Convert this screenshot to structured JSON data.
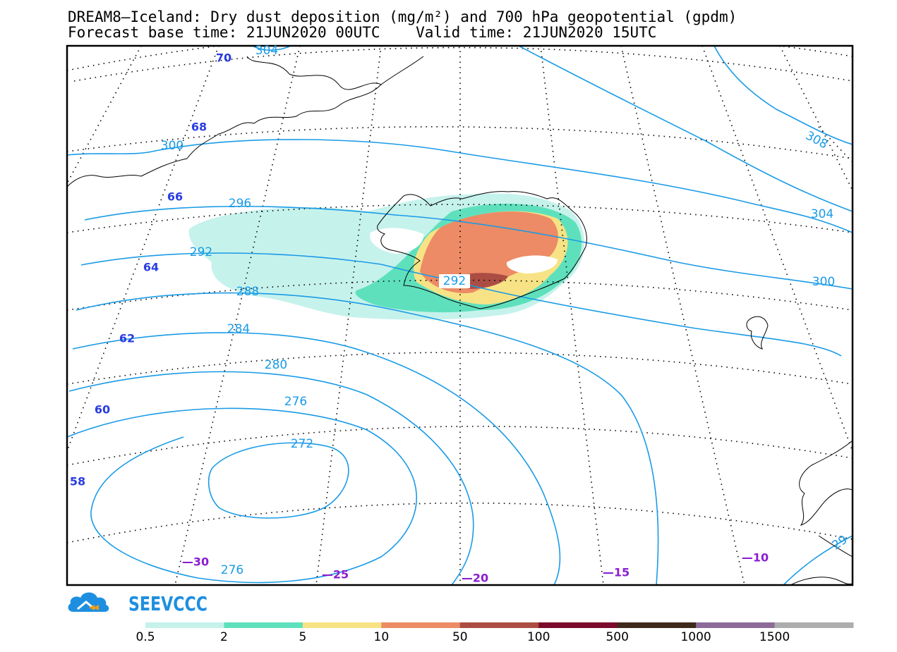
{
  "header": {
    "title_line1": "DREAM8—Iceland: Dry dust deposition (mg/m²) and 700 hPa geopotential (gpdm)",
    "title_line2": "Forecast base time: 21JUN2020 00UTC    Valid time: 21JUN2020 15UTC"
  },
  "brand": {
    "name": "SEEVCCC",
    "color": "#1e8fe0"
  },
  "contour_labels": [
    {
      "text": "304",
      "pos": "top-left"
    },
    {
      "text": "300",
      "pos": "west"
    },
    {
      "text": "296",
      "pos": "west"
    },
    {
      "text": "292",
      "pos": "west"
    },
    {
      "text": "292",
      "pos": "iceland"
    },
    {
      "text": "288",
      "pos": "west"
    },
    {
      "text": "284",
      "pos": "west"
    },
    {
      "text": "280",
      "pos": "south-west"
    },
    {
      "text": "276",
      "pos": "south-west"
    },
    {
      "text": "272",
      "pos": "low-center"
    },
    {
      "text": "276",
      "pos": "bottom"
    },
    {
      "text": "308",
      "pos": "north-east"
    },
    {
      "text": "304",
      "pos": "east"
    },
    {
      "text": "300",
      "pos": "east"
    },
    {
      "text": "29",
      "pos": "south-east"
    }
  ],
  "latitude_labels": [
    "70",
    "68",
    "66",
    "64",
    "62",
    "60",
    "58"
  ],
  "longitude_labels": [
    "—30",
    "—25",
    "—20",
    "—15",
    "—10"
  ],
  "colors": {
    "contour": "#1a9be6",
    "lat_label": "#2a3de0",
    "lon_label": "#8a1ecf"
  },
  "legend": {
    "bins": [
      {
        "color": "#c6f2ec"
      },
      {
        "color": "#5fe0bd"
      },
      {
        "color": "#f7e385"
      },
      {
        "color": "#ec8b65"
      },
      {
        "color": "#ac4d43"
      },
      {
        "color": "#7c0a2c"
      },
      {
        "color": "#3e2a1c"
      },
      {
        "color": "#8e6a9a"
      },
      {
        "color": "#adadad"
      }
    ],
    "tick_labels": [
      "0.5",
      "2",
      "5",
      "10",
      "50",
      "100",
      "500",
      "1000",
      "1500"
    ]
  }
}
